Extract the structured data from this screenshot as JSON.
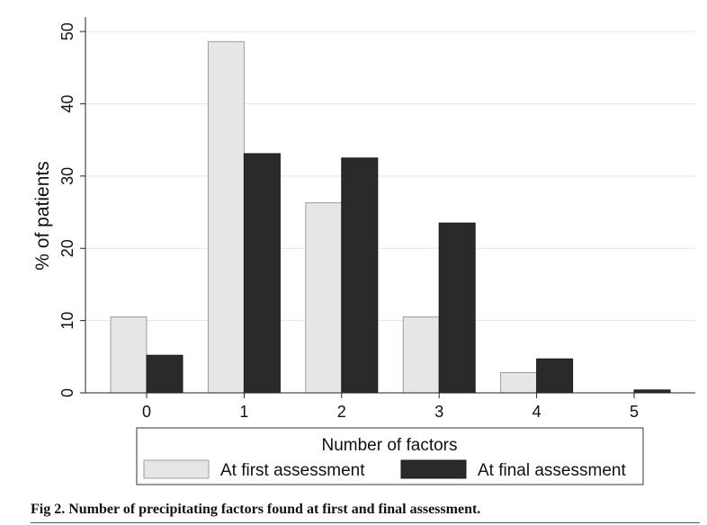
{
  "chart_data": {
    "type": "bar",
    "title": "",
    "categories": [
      "0",
      "1",
      "2",
      "3",
      "4",
      "5"
    ],
    "series": [
      {
        "name": "At first assessment",
        "values": [
          10.5,
          48.6,
          26.3,
          10.5,
          2.8,
          0.0
        ],
        "color": "#e6e6e6",
        "stroke": "#9c9c9c"
      },
      {
        "name": "At final assessment",
        "values": [
          5.2,
          33.1,
          32.5,
          23.5,
          4.7,
          0.4
        ],
        "color": "#2a2a2a",
        "stroke": "#1a1a1a"
      }
    ],
    "xlabel": "Number of factors",
    "ylabel": "% of patients",
    "ylim": [
      0,
      52
    ],
    "yticks": [
      0,
      10,
      20,
      30,
      40,
      50
    ],
    "grid": true,
    "legend_position": "bottom"
  },
  "caption": "Fig 2. Number of precipitating factors found at first and final assessment."
}
